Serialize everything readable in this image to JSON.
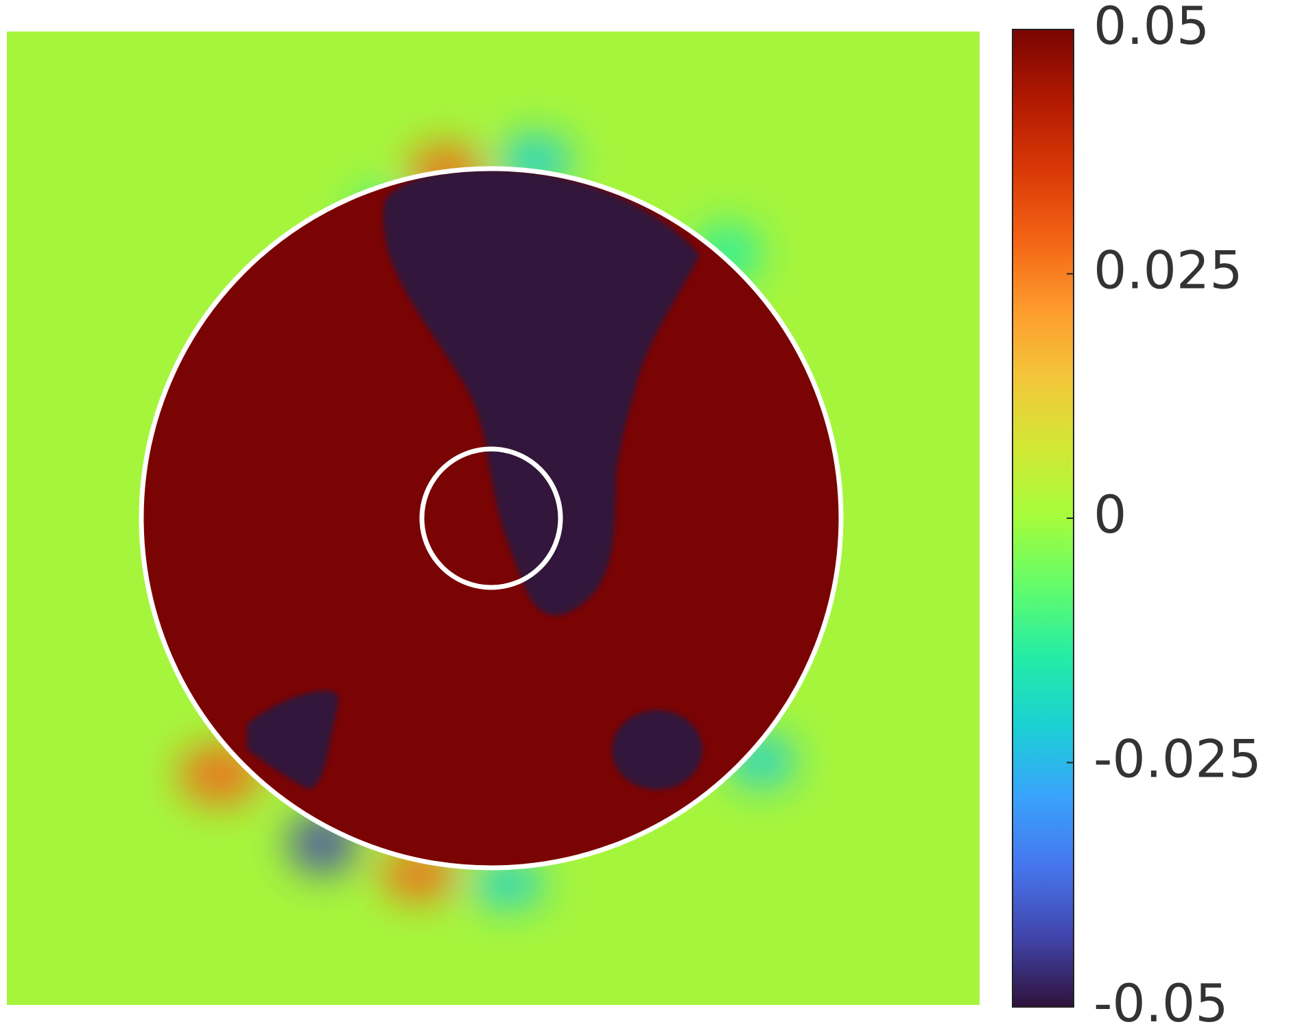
{
  "chart_data": {
    "type": "heatmap",
    "colormap": [
      "#30123b",
      "#4145ab",
      "#4675ed",
      "#39a2fc",
      "#1bcfd4",
      "#24eca6",
      "#61fc6c",
      "#a4fc3b",
      "#d1e834",
      "#f3c63a",
      "#fe9b2d",
      "#f36315",
      "#d93806",
      "#b11901",
      "#7a0403"
    ],
    "colorbar_lim": [
      -0.05,
      0.05
    ],
    "colorbar_ticks": [
      -0.05,
      -0.025,
      0,
      0.025,
      0.05
    ]
  }
}
